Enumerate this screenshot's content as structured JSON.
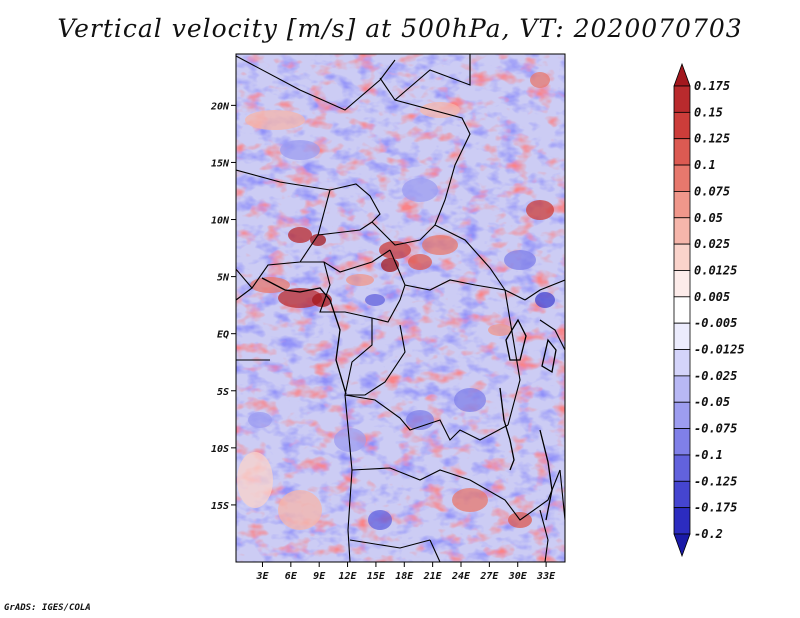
{
  "chart_data": {
    "type": "heatmap",
    "title": "Vertical velocity [m/s] at 500hPa, VT: 2020070703",
    "variable": "Vertical velocity",
    "units": "m/s",
    "level": "500hPa",
    "valid_time": "2020070703",
    "x_ticks": [
      "3E",
      "6E",
      "9E",
      "12E",
      "15E",
      "18E",
      "21E",
      "24E",
      "27E",
      "30E",
      "33E"
    ],
    "x_tick_values": [
      3,
      6,
      9,
      12,
      15,
      18,
      21,
      24,
      27,
      30,
      33
    ],
    "y_ticks": [
      "20N",
      "15N",
      "10N",
      "5N",
      "EQ",
      "5S",
      "10S",
      "15S"
    ],
    "y_tick_values": [
      20,
      15,
      10,
      5,
      0,
      -5,
      -10,
      -15
    ],
    "xlim": [
      0.2,
      35
    ],
    "ylim": [
      -20,
      24.5
    ],
    "colorbar": {
      "labels": [
        "0.175",
        "0.15",
        "0.125",
        "0.1",
        "0.075",
        "0.05",
        "0.025",
        "0.0125",
        "0.005",
        "-0.005",
        "-0.0125",
        "-0.025",
        "-0.05",
        "-0.075",
        "-0.1",
        "-0.125",
        "-0.175",
        "-0.2"
      ],
      "colors": [
        "#a3181e",
        "#b92a2d",
        "#cc3d3a",
        "#dc5a52",
        "#e7786d",
        "#f0978b",
        "#f6b6ab",
        "#fad3cb",
        "#fdecea",
        "#ffffff",
        "#ececfd",
        "#d4d4fa",
        "#b8b8f5",
        "#9d9df0",
        "#8080e8",
        "#6262dd",
        "#4545d0",
        "#2c2cc0",
        "#1a1aa8"
      ]
    }
  },
  "footer": "GrADS: IGES/COLA"
}
